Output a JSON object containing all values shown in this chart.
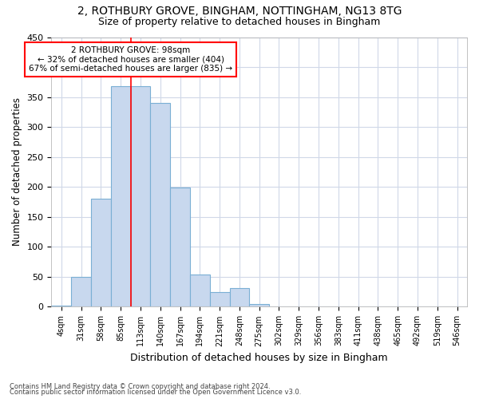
{
  "title_line1": "2, ROTHBURY GROVE, BINGHAM, NOTTINGHAM, NG13 8TG",
  "title_line2": "Size of property relative to detached houses in Bingham",
  "xlabel": "Distribution of detached houses by size in Bingham",
  "ylabel": "Number of detached properties",
  "categories": [
    "4sqm",
    "31sqm",
    "58sqm",
    "85sqm",
    "113sqm",
    "140sqm",
    "167sqm",
    "194sqm",
    "221sqm",
    "248sqm",
    "275sqm",
    "302sqm",
    "329sqm",
    "356sqm",
    "383sqm",
    "411sqm",
    "438sqm",
    "465sqm",
    "492sqm",
    "519sqm",
    "546sqm"
  ],
  "values": [
    2,
    50,
    181,
    368,
    368,
    340,
    199,
    54,
    25,
    31,
    5,
    0,
    0,
    0,
    0,
    0,
    0,
    0,
    0,
    0,
    1
  ],
  "bar_color": "#c8d8ee",
  "bar_edge_color": "#7aafd4",
  "red_line_x": 3.5,
  "annotation_text1": "2 ROTHBURY GROVE: 98sqm",
  "annotation_text2": "← 32% of detached houses are smaller (404)",
  "annotation_text3": "67% of semi-detached houses are larger (835) →",
  "annotation_box_color": "white",
  "annotation_box_edge_color": "red",
  "ylim": [
    0,
    450
  ],
  "yticks": [
    0,
    50,
    100,
    150,
    200,
    250,
    300,
    350,
    400,
    450
  ],
  "footer_line1": "Contains HM Land Registry data © Crown copyright and database right 2024.",
  "footer_line2": "Contains public sector information licensed under the Open Government Licence v3.0.",
  "bg_color": "#ffffff",
  "grid_color": "#d0d8e8"
}
